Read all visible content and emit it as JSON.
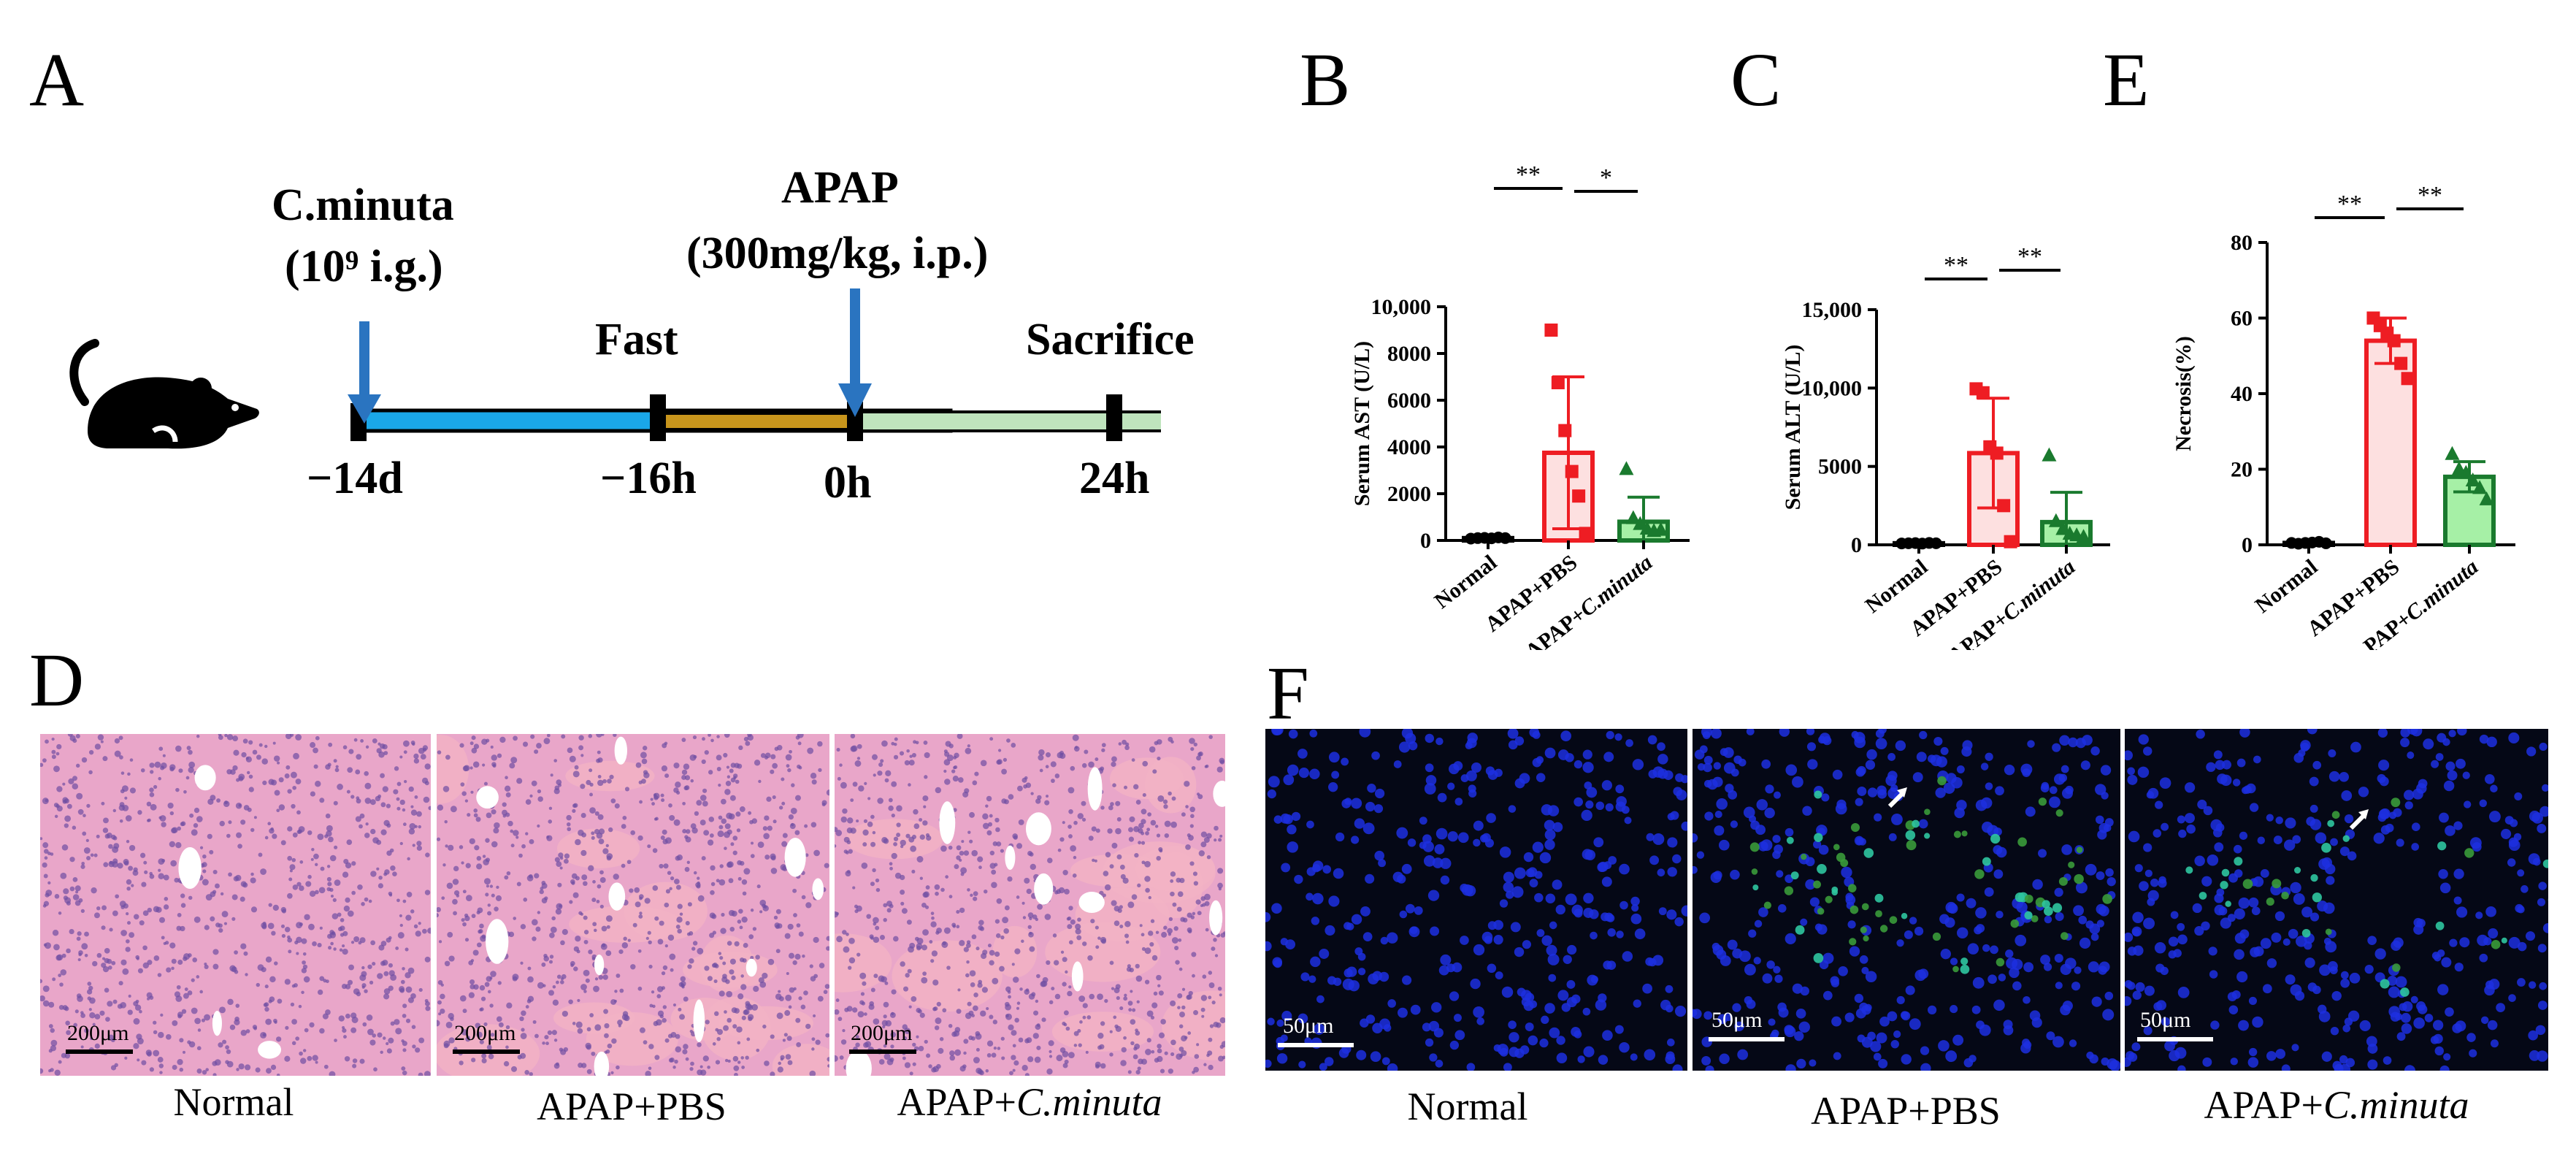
{
  "panels": {
    "A": "A",
    "B": "B",
    "C": "C",
    "D": "D",
    "E": "E",
    "F": "F"
  },
  "timeline": {
    "cminuta_label": "C.minuta",
    "dose_label": "(10⁹ i.g.)",
    "apap_label": "APAP",
    "apap_dose": "(300mg/kg, i.p.)",
    "fast_label": "Fast",
    "sacrifice_label": "Sacrifice",
    "ticks": [
      "−14d",
      "−16h",
      "0h",
      "24h"
    ],
    "colors": {
      "seg1": "#1aa7e8",
      "seg2": "#c8951c",
      "seg3": "#bfe4bd",
      "arrow": "#2a74c0"
    },
    "icon": "mouse-icon"
  },
  "micrographs": {
    "he": {
      "captions": [
        "Normal",
        "APAP+PBS",
        "APAP+C.minuta"
      ],
      "scalebar": "200μm",
      "base_color": "#e9a6c9"
    },
    "fluor": {
      "captions": [
        "Normal",
        "APAP+PBS",
        "APAP+C.minuta"
      ],
      "scalebar": "50μm",
      "base_color": "#050816"
    }
  },
  "chart_data": [
    {
      "type": "bar",
      "panel": "B",
      "categories": [
        "Normal",
        "APAP+PBS",
        "APAP+C.minuta"
      ],
      "values": [
        100,
        3750,
        800
      ],
      "error": [
        40,
        3250,
        1050
      ],
      "points": [
        [
          80,
          100,
          110,
          90,
          130,
          100
        ],
        [
          9000,
          6750,
          4700,
          2950,
          1900,
          300
        ],
        [
          3050,
          950,
          700,
          500,
          400,
          450
        ]
      ],
      "ylabel": "Serum AST (U/L)",
      "ylim": [
        0,
        10000
      ],
      "yticks": [
        0,
        2000,
        4000,
        6000,
        8000,
        10000
      ],
      "ytick_labels": [
        "0",
        "2000",
        "4000",
        "6000",
        "8000",
        "10,000"
      ],
      "significance": [
        {
          "from": 0,
          "to": 1,
          "label": "**"
        },
        {
          "from": 1,
          "to": 2,
          "label": "*"
        }
      ],
      "colors": [
        "#000000",
        "#ee1d23",
        "#1a7a2e"
      ],
      "fills": [
        "#ffffff",
        "#fde0e0",
        "#a6f0a6"
      ]
    },
    {
      "type": "bar",
      "panel": "C",
      "categories": [
        "Normal",
        "APAP+PBS",
        "APAP+C.minuta"
      ],
      "values": [
        100,
        5850,
        1450
      ],
      "error": [
        40,
        3500,
        1900
      ],
      "points": [
        [
          90,
          100,
          110,
          80,
          120,
          100
        ],
        [
          9950,
          9700,
          6250,
          5850,
          2500,
          200
        ],
        [
          5700,
          1500,
          1000,
          700,
          600,
          500
        ]
      ],
      "ylabel": "Serum ALT (U/L)",
      "ylim": [
        0,
        15000
      ],
      "yticks": [
        0,
        5000,
        10000,
        15000
      ],
      "ytick_labels": [
        "0",
        "5000",
        "10,000",
        "15,000"
      ],
      "significance": [
        {
          "from": 0,
          "to": 1,
          "label": "**"
        },
        {
          "from": 1,
          "to": 2,
          "label": "**"
        }
      ],
      "colors": [
        "#000000",
        "#ee1d23",
        "#1a7a2e"
      ],
      "fills": [
        "#ffffff",
        "#fde0e0",
        "#a6f0a6"
      ]
    },
    {
      "type": "bar",
      "panel": "E",
      "categories": [
        "Normal",
        "APAP+PBS",
        "PAP+C.minuta"
      ],
      "values": [
        0.5,
        54,
        18
      ],
      "error": [
        0.3,
        6,
        4
      ],
      "points": [
        [
          0.5,
          0.3,
          0.5,
          0.6,
          0.8,
          0.4
        ],
        [
          60,
          58,
          56,
          54,
          48,
          44
        ],
        [
          24,
          20,
          19,
          17,
          15,
          12
        ]
      ],
      "ylabel": "Necrosis(%)",
      "ylim": [
        0,
        80
      ],
      "yticks": [
        0,
        20,
        40,
        60,
        80
      ],
      "ytick_labels": [
        "0",
        "20",
        "40",
        "60",
        "80"
      ],
      "significance": [
        {
          "from": 0,
          "to": 1,
          "label": "**"
        },
        {
          "from": 1,
          "to": 2,
          "label": "**"
        }
      ],
      "colors": [
        "#000000",
        "#ee1d23",
        "#1a7a2e"
      ],
      "fills": [
        "#ffffff",
        "#fde0e0",
        "#a6f0a6"
      ]
    }
  ]
}
